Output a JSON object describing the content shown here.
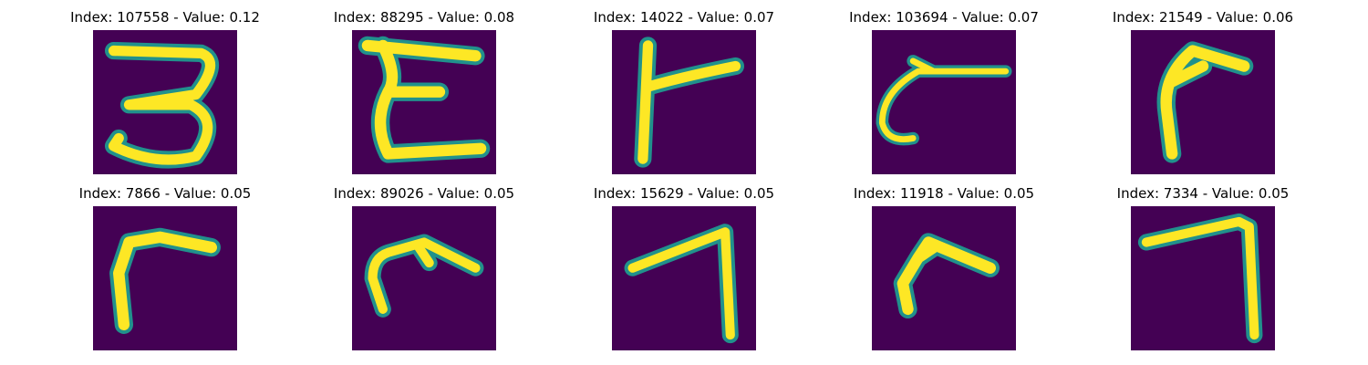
{
  "colors": {
    "background": "#440154",
    "glyph_core": "#fde725",
    "glyph_edge": "#21918c"
  },
  "panels": [
    {
      "index": "107558",
      "value": "0.12",
      "title": "Index: 107558 - Value: 0.12"
    },
    {
      "index": "88295",
      "value": "0.08",
      "title": "Index: 88295 - Value: 0.08"
    },
    {
      "index": "14022",
      "value": "0.07",
      "title": "Index: 14022 - Value: 0.07"
    },
    {
      "index": "103694",
      "value": "0.07",
      "title": "Index: 103694 - Value: 0.07"
    },
    {
      "index": "21549",
      "value": "0.06",
      "title": "Index: 21549 - Value: 0.06"
    },
    {
      "index": "7866",
      "value": "0.05",
      "title": "Index: 7866 - Value: 0.05"
    },
    {
      "index": "89026",
      "value": "0.05",
      "title": "Index: 89026 - Value: 0.05"
    },
    {
      "index": "15629",
      "value": "0.05",
      "title": "Index: 15629 - Value: 0.05"
    },
    {
      "index": "11918",
      "value": "0.05",
      "title": "Index: 11918 - Value: 0.05"
    },
    {
      "index": "7334",
      "value": "0.05",
      "title": "Index: 7334 - Value: 0.05"
    }
  ]
}
